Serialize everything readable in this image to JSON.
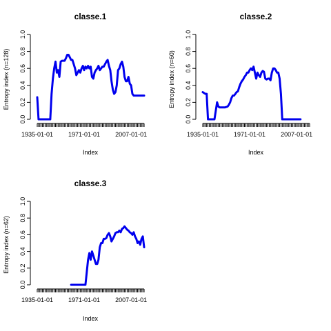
{
  "chart_data": [
    {
      "type": "line",
      "title": "classe.1",
      "xlabel": "Index",
      "ylabel": "Entropy index (n=128)",
      "ylim": [
        0,
        1
      ],
      "yticks": [
        "0.0",
        "0.2",
        "0.4",
        "0.6",
        "0.8",
        "1.0"
      ],
      "xticklabels": [
        "1935-01-01",
        "1971-01-01",
        "2007-01-01"
      ],
      "color": "#0000ee",
      "series": [
        {
          "x": [
            1935,
            1936,
            1938,
            1940,
            1942,
            1944,
            1945,
            1946,
            1947,
            1948,
            1949,
            1950,
            1951,
            1952,
            1953,
            1954,
            1955,
            1956,
            1957,
            1958,
            1959,
            1960,
            1961,
            1962,
            1963,
            1964,
            1965,
            1966,
            1967,
            1968,
            1969,
            1970,
            1971,
            1972,
            1973,
            1974,
            1975,
            1976,
            1977,
            1978,
            1979,
            1980,
            1981,
            1982,
            1983,
            1984,
            1985,
            1986,
            1987,
            1988,
            1989,
            1990,
            1991,
            1992,
            1993,
            1994,
            1995,
            1996,
            1997,
            1998,
            1999,
            2000,
            2001,
            2002,
            2003,
            2004,
            2005,
            2006,
            2007,
            2008,
            2009,
            2010,
            2011,
            2012,
            2013,
            2014,
            2015,
            2016,
            2017
          ],
          "y": [
            0.26,
            0.0,
            0.0,
            0.0,
            0.0,
            0.0,
            0.0,
            0.3,
            0.48,
            0.6,
            0.68,
            0.55,
            0.58,
            0.5,
            0.68,
            0.69,
            0.69,
            0.69,
            0.72,
            0.76,
            0.76,
            0.73,
            0.7,
            0.7,
            0.65,
            0.6,
            0.52,
            0.55,
            0.58,
            0.55,
            0.6,
            0.63,
            0.58,
            0.62,
            0.6,
            0.63,
            0.6,
            0.62,
            0.5,
            0.48,
            0.55,
            0.58,
            0.6,
            0.63,
            0.58,
            0.6,
            0.62,
            0.62,
            0.65,
            0.68,
            0.7,
            0.63,
            0.58,
            0.45,
            0.35,
            0.3,
            0.32,
            0.4,
            0.58,
            0.6,
            0.65,
            0.68,
            0.62,
            0.5,
            0.45,
            0.45,
            0.5,
            0.42,
            0.4,
            0.3,
            0.28,
            0.28,
            0.28,
            0.28,
            0.28,
            0.28,
            0.28,
            0.28,
            0.28
          ]
        }
      ]
    },
    {
      "type": "line",
      "title": "classe.2",
      "xlabel": "Index",
      "ylabel": "Entropy index (n=60)",
      "ylim": [
        0,
        1
      ],
      "yticks": [
        "0.0",
        "0.2",
        "0.4",
        "0.6",
        "0.8",
        "1.0"
      ],
      "xticklabels": [
        "1935-01-01",
        "1971-01-01",
        "2007-01-01"
      ],
      "color": "#0000ee",
      "series": [
        {
          "x": [
            1935,
            1936,
            1937,
            1938,
            1939,
            1940,
            1942,
            1944,
            1945,
            1946,
            1947,
            1948,
            1949,
            1950,
            1952,
            1954,
            1955,
            1956,
            1957,
            1958,
            1959,
            1960,
            1961,
            1962,
            1963,
            1964,
            1965,
            1966,
            1967,
            1968,
            1969,
            1970,
            1971,
            1972,
            1973,
            1974,
            1975,
            1976,
            1977,
            1978,
            1979,
            1980,
            1981,
            1982,
            1983,
            1984,
            1985,
            1986,
            1987,
            1988,
            1989,
            1990,
            1991,
            1992,
            1993,
            1994,
            1995,
            1996,
            1997,
            1998,
            1999,
            2000,
            2001,
            2002,
            2004,
            2006,
            2008,
            2010
          ],
          "y": [
            0.32,
            0.31,
            0.3,
            0.3,
            0.0,
            0.0,
            0.0,
            0.0,
            0.1,
            0.2,
            0.15,
            0.14,
            0.14,
            0.14,
            0.14,
            0.15,
            0.17,
            0.2,
            0.25,
            0.28,
            0.28,
            0.3,
            0.32,
            0.33,
            0.38,
            0.42,
            0.45,
            0.47,
            0.5,
            0.52,
            0.55,
            0.55,
            0.58,
            0.6,
            0.58,
            0.62,
            0.55,
            0.48,
            0.55,
            0.52,
            0.5,
            0.55,
            0.57,
            0.56,
            0.48,
            0.47,
            0.48,
            0.48,
            0.46,
            0.55,
            0.6,
            0.6,
            0.58,
            0.55,
            0.55,
            0.48,
            0.3,
            0.0,
            0.0,
            0.0,
            0.0,
            0.0,
            0.0,
            0.0,
            0.0,
            0.0,
            0.0,
            0.0
          ]
        }
      ]
    },
    {
      "type": "line",
      "title": "classe.3",
      "xlabel": "Index",
      "ylabel": "Entropy index (n=62)",
      "ylim": [
        0,
        1
      ],
      "yticks": [
        "0.0",
        "0.2",
        "0.4",
        "0.6",
        "0.8",
        "1.0"
      ],
      "xticklabels": [
        "1935-01-01",
        "1971-01-01",
        "2007-01-01"
      ],
      "color": "#0000ee",
      "series": [
        {
          "x": [
            1961,
            1965,
            1969,
            1972,
            1973,
            1974,
            1975,
            1976,
            1977,
            1978,
            1979,
            1980,
            1981,
            1982,
            1983,
            1984,
            1985,
            1986,
            1987,
            1988,
            1989,
            1990,
            1991,
            1992,
            1993,
            1994,
            1995,
            1996,
            1997,
            1998,
            1999,
            2000,
            2001,
            2002,
            2003,
            2004,
            2005,
            2006,
            2007,
            2008,
            2009,
            2010,
            2011,
            2012,
            2013,
            2014,
            2015,
            2016,
            2017
          ],
          "y": [
            0.0,
            0.0,
            0.0,
            0.0,
            0.15,
            0.3,
            0.38,
            0.3,
            0.4,
            0.35,
            0.3,
            0.25,
            0.25,
            0.3,
            0.45,
            0.5,
            0.5,
            0.55,
            0.55,
            0.56,
            0.6,
            0.62,
            0.58,
            0.52,
            0.55,
            0.58,
            0.62,
            0.63,
            0.63,
            0.65,
            0.63,
            0.67,
            0.68,
            0.7,
            0.68,
            0.66,
            0.65,
            0.63,
            0.62,
            0.6,
            0.63,
            0.58,
            0.55,
            0.5,
            0.52,
            0.48,
            0.55,
            0.58,
            0.45
          ]
        }
      ]
    }
  ]
}
